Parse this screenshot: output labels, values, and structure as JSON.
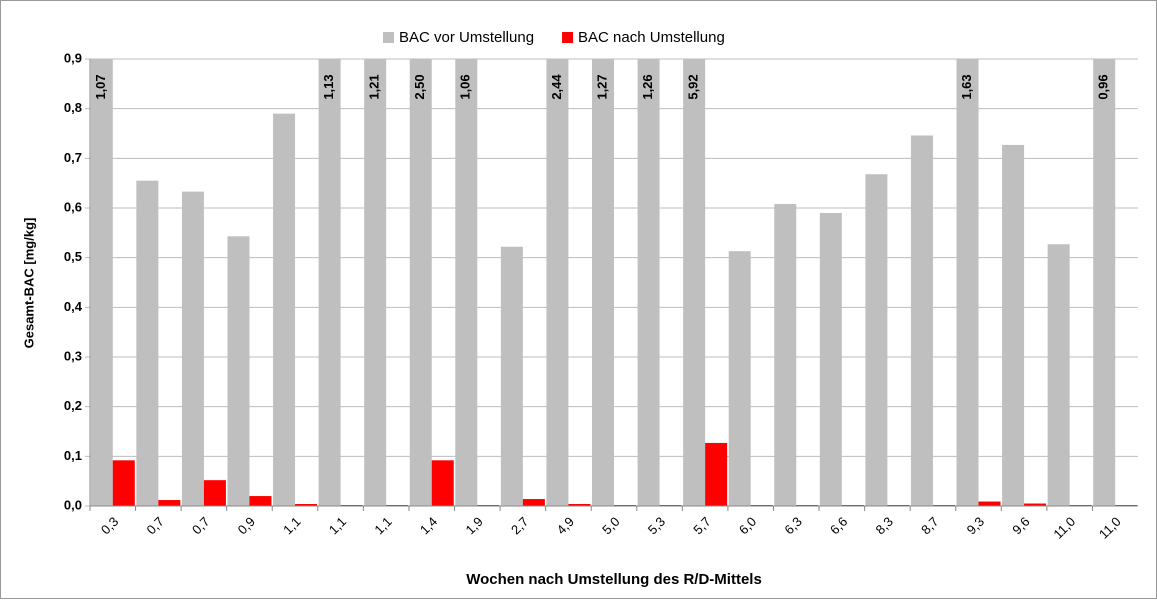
{
  "chart_data": {
    "type": "bar",
    "categories": [
      "0,3",
      "0,7",
      "0,7",
      "0,9",
      "1,1",
      "1,1",
      "1,1",
      "1,4",
      "1,9",
      "2,7",
      "4,9",
      "5,0",
      "5,3",
      "5,7",
      "6,0",
      "6,3",
      "6,6",
      "8,3",
      "8,7",
      "9,3",
      "9,6",
      "11,0",
      "11,0"
    ],
    "series": [
      {
        "name": "BAC vor Umstellung",
        "color": "#bfbfbf",
        "values": [
          1.07,
          0.655,
          0.633,
          0.543,
          0.79,
          1.13,
          1.21,
          2.5,
          1.06,
          0.522,
          2.44,
          1.27,
          1.26,
          5.92,
          0.513,
          0.608,
          0.59,
          0.668,
          0.746,
          1.63,
          0.727,
          0.527,
          0.96
        ],
        "value_labels": [
          "1,07",
          null,
          null,
          null,
          null,
          "1,13",
          "1,21",
          "2,50",
          "1,06",
          null,
          "2,44",
          "1,27",
          "1,26",
          "5,92",
          null,
          null,
          null,
          null,
          null,
          "1,63",
          null,
          null,
          "0,96"
        ]
      },
      {
        "name": "BAC nach Umstellung",
        "color": "#ff0000",
        "values": [
          0.092,
          0.012,
          0.052,
          0.02,
          0.004,
          0.002,
          0.002,
          0.092,
          0.002,
          0.014,
          0.004,
          0.002,
          0.002,
          0.127,
          0.002,
          0.002,
          0.002,
          0.002,
          0.002,
          0.009,
          0.005,
          0.002,
          0.002
        ]
      }
    ],
    "ylabel": "Gesamt-BAC [mg/kg]",
    "xlabel": "Wochen nach Umstellung des R/D-Mittels",
    "ylim": [
      0,
      0.9
    ],
    "yticks": [
      {
        "value": 0,
        "label": "0,0"
      },
      {
        "value": 0.1,
        "label": "0,1"
      },
      {
        "value": 0.2,
        "label": "0,2"
      },
      {
        "value": 0.3,
        "label": "0,3"
      },
      {
        "value": 0.4,
        "label": "0,4"
      },
      {
        "value": 0.5,
        "label": "0,5"
      },
      {
        "value": 0.6,
        "label": "0,6"
      },
      {
        "value": 0.7,
        "label": "0,7"
      },
      {
        "value": 0.8,
        "label": "0,8"
      },
      {
        "value": 0.9,
        "label": "0,9"
      }
    ],
    "grid": true,
    "legend": "top"
  }
}
